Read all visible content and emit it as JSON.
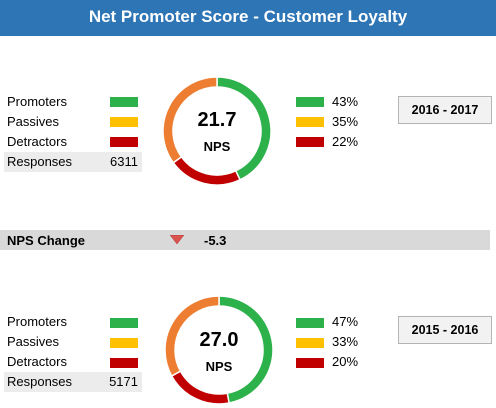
{
  "title": "Net Promoter Score - Customer Loyalty",
  "colors": {
    "header": "#2e75b6",
    "promoters": "#2db14a",
    "passives": "#ffc000",
    "detractors": "#c00000",
    "ring_promoters": "#2db14a",
    "ring_passives": "#ed7d31",
    "ring_detractors": "#c00000",
    "arrow_down": "#d9534f"
  },
  "legend": {
    "promoters": "Promoters",
    "passives": "Passives",
    "detractors": "Detractors",
    "responses": "Responses"
  },
  "change": {
    "label": "NPS Change",
    "value": "-5.3",
    "direction": "down"
  },
  "chart_data": [
    {
      "type": "pie",
      "period": "2016 - 2017",
      "nps": "21.7",
      "center_label": "NPS",
      "responses": "6311",
      "categories": [
        "Promoters",
        "Passives",
        "Detractors"
      ],
      "values": [
        43,
        35,
        22
      ],
      "value_labels": [
        "43%",
        "35%",
        "22%"
      ]
    },
    {
      "type": "pie",
      "period": "2015 - 2016",
      "nps": "27.0",
      "center_label": "NPS",
      "responses": "5171",
      "categories": [
        "Promoters",
        "Passives",
        "Detractors"
      ],
      "values": [
        47,
        33,
        20
      ],
      "value_labels": [
        "47%",
        "33%",
        "20%"
      ]
    }
  ]
}
